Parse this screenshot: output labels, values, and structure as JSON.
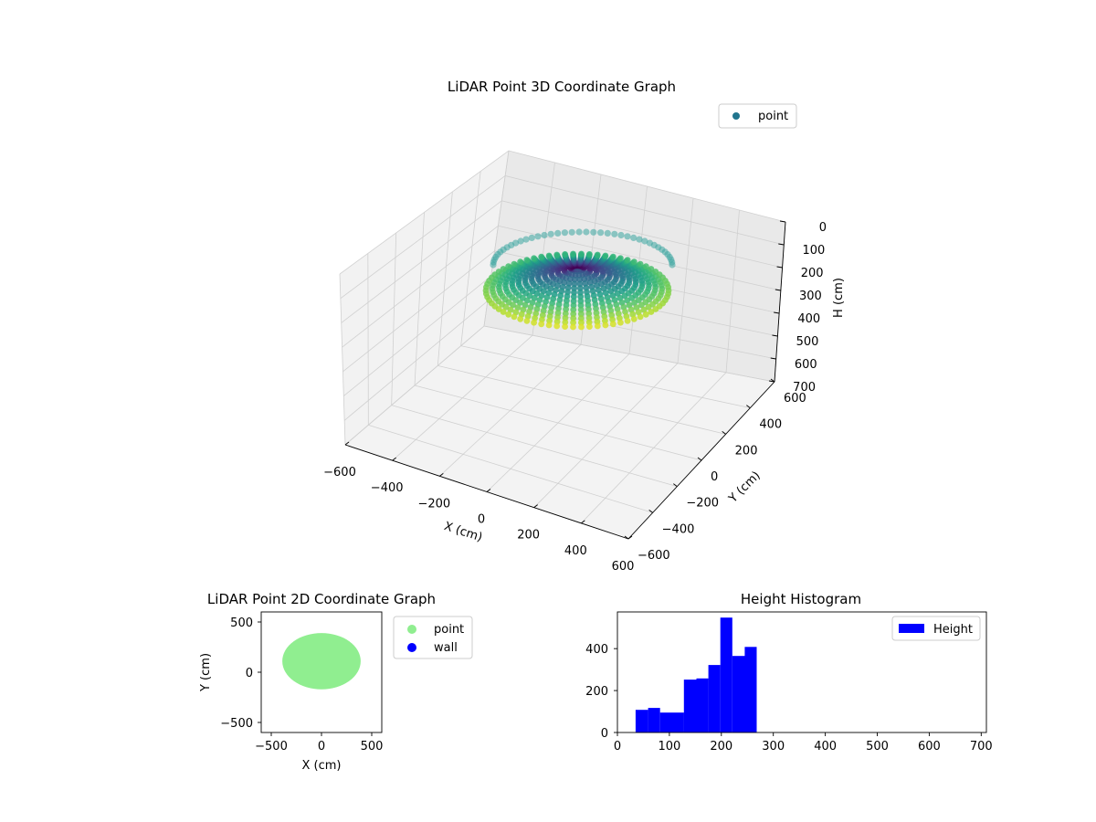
{
  "chart_data": [
    {
      "type": "scatter3d",
      "title": "LiDAR Point 3D Coordinate Graph",
      "xlabel": "X (cm)",
      "ylabel": "Y (cm)",
      "zlabel": "H (cm)",
      "xlim": [
        -600,
        600
      ],
      "ylim": [
        -600,
        600
      ],
      "zlim": [
        0,
        700
      ],
      "z_inverted": true,
      "x_ticks": [
        "−600",
        "−400",
        "−200",
        "0",
        "200",
        "400",
        "600"
      ],
      "y_ticks": [
        "−600",
        "−400",
        "−200",
        "0",
        "200",
        "400",
        "600"
      ],
      "z_ticks": [
        "0",
        "100",
        "200",
        "300",
        "400",
        "500",
        "600",
        "700"
      ],
      "legend": [
        {
          "name": "point",
          "color": "#21758e"
        }
      ],
      "legend_position": "top-right",
      "colormap": "viridis",
      "grid": true
    },
    {
      "type": "scatter",
      "title": "LiDAR Point 2D Coordinate Graph",
      "xlabel": "X (cm)",
      "ylabel": "Y (cm)",
      "xlim": [
        -600,
        600
      ],
      "ylim": [
        -600,
        600
      ],
      "x_ticks": [
        "−500",
        "0",
        "500"
      ],
      "y_ticks": [
        "−500",
        "0",
        "500"
      ],
      "series": [
        {
          "name": "point",
          "color": "#90ee90",
          "outline": {
            "x_range": [
              -390,
              390
            ],
            "y_range": [
              -170,
              390
            ]
          }
        },
        {
          "name": "wall",
          "color": "#0000ff",
          "points": []
        }
      ],
      "legend_position": "outside-right",
      "grid": false
    },
    {
      "type": "bar",
      "title": "Height Histogram",
      "xlabel": "",
      "ylabel": "",
      "xlim": [
        0,
        710
      ],
      "ylim": [
        0,
        575
      ],
      "x_ticks": [
        "0",
        "100",
        "200",
        "300",
        "400",
        "500",
        "600",
        "700"
      ],
      "y_ticks": [
        "0",
        "200",
        "400"
      ],
      "series": [
        {
          "name": "Height",
          "color": "#0000ff"
        }
      ],
      "bins": [
        {
          "x0": 35,
          "x1": 59,
          "value": 108
        },
        {
          "x0": 59,
          "x1": 82,
          "value": 117
        },
        {
          "x0": 82,
          "x1": 128,
          "value": 95
        },
        {
          "x0": 128,
          "x1": 152,
          "value": 252
        },
        {
          "x0": 152,
          "x1": 175,
          "value": 258
        },
        {
          "x0": 175,
          "x1": 198,
          "value": 322
        },
        {
          "x0": 198,
          "x1": 221,
          "value": 548
        },
        {
          "x0": 221,
          "x1": 245,
          "value": 365
        },
        {
          "x0": 245,
          "x1": 268,
          "value": 408
        }
      ],
      "legend_position": "top-right",
      "grid": false
    }
  ]
}
